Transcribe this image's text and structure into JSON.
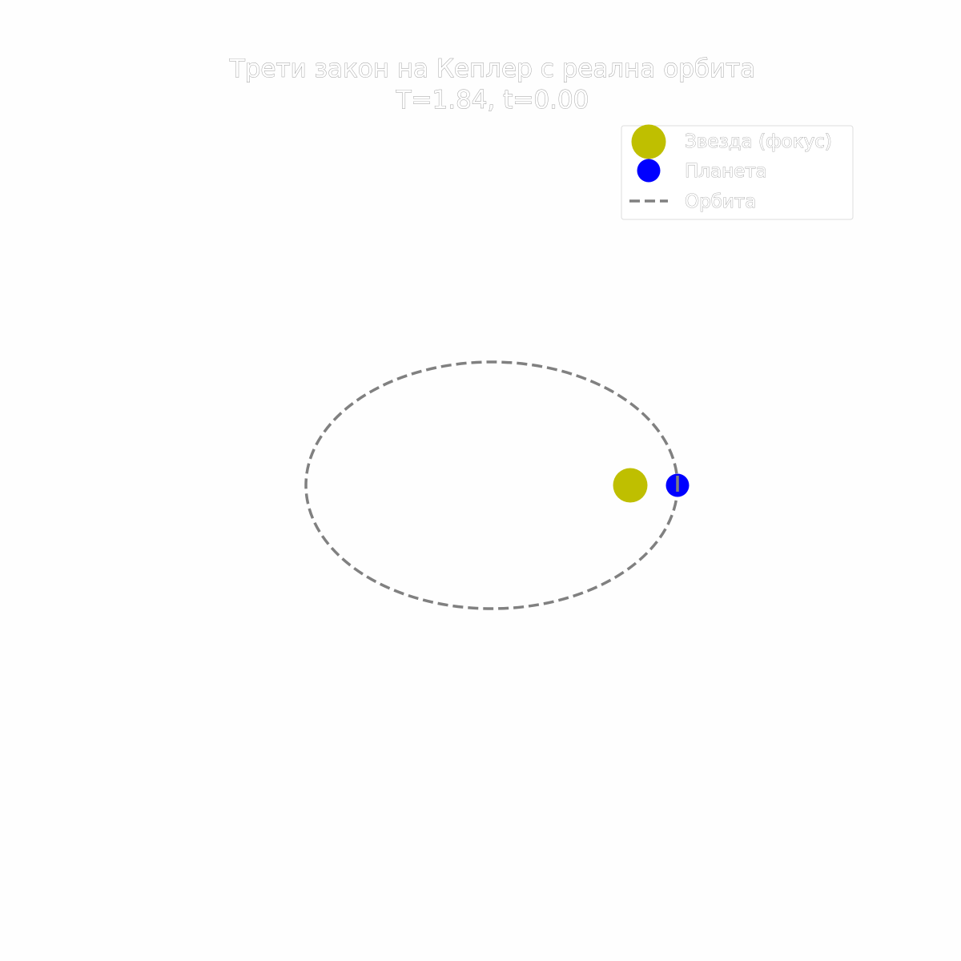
{
  "title": {
    "line1": "Трети закон на Кеплер с реална орбита",
    "line2": "T=1.84, t=0.00"
  },
  "legend": {
    "placement": "top-right",
    "items": [
      {
        "label": "Звезда (фокус)",
        "marker": "circle",
        "color": "#bfbf00"
      },
      {
        "label": "Планета",
        "marker": "circle",
        "color": "#0000ff"
      },
      {
        "label": "Орбита",
        "marker": "dashed-line",
        "color": "#808080"
      }
    ]
  },
  "colors": {
    "background": "#fefefe",
    "star": "#bfbf00",
    "planet": "#0000ff",
    "orbit": "#808080",
    "legend_border": "#dddddd"
  },
  "scene": {
    "star_marker": "focus",
    "planet_position": "perihelion",
    "orbit_style": "dashed"
  }
}
